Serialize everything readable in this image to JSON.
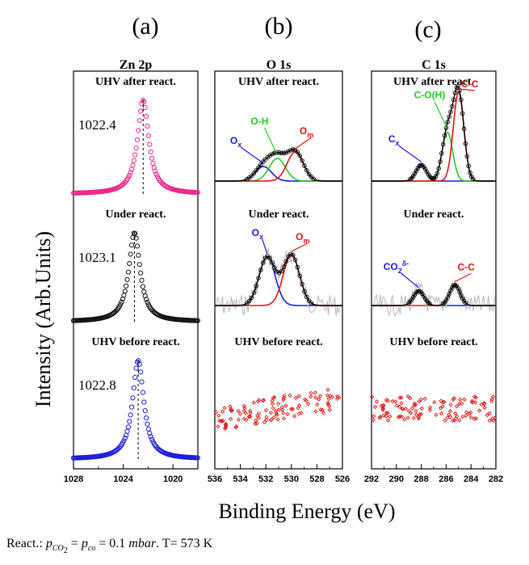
{
  "figure": {
    "ylabel": "Intensity (Arb.Units)",
    "xlabel": "Binding Energy (eV)",
    "footer": {
      "prefix": "React.: ",
      "p_symbol": "p",
      "co2_sub": "CO",
      "co2_sub_num": "2",
      "eq1": " = ",
      "co_sub": "co",
      "eq2": " = 0.1 ",
      "unit": "mbar",
      "temp": ". T= 573  K"
    }
  },
  "chart_data": [
    {
      "type": "scatter",
      "panel_letter": "(a)",
      "title": "Zn 2p",
      "xlim": [
        1028,
        1018
      ],
      "xticks": [
        1028,
        1024,
        1020
      ],
      "rows": [
        {
          "label": "UHV after react.",
          "peak_value": "1022.4",
          "peak_center": 1022.4,
          "color": "#e8288c"
        },
        {
          "label": "Under react.",
          "peak_value": "1023.1",
          "peak_center": 1023.1,
          "color": "#111111"
        },
        {
          "label": "UHV before react.",
          "peak_value": "1022.8",
          "peak_center": 1022.8,
          "color": "#1a1adb"
        }
      ]
    },
    {
      "type": "scatter",
      "panel_letter": "(b)",
      "title": "O 1s",
      "xlim": [
        536,
        526
      ],
      "xticks": [
        536,
        534,
        532,
        530,
        528,
        526
      ],
      "rows": [
        {
          "label": "UHV after react.",
          "components": [
            {
              "name": "Ox",
              "base": "O",
              "sub": "x",
              "center": 532.2,
              "amp": 0.45,
              "color": "#1a1adb"
            },
            {
              "name": "O-H",
              "base": "O-H",
              "sub": "",
              "center": 531.1,
              "amp": 0.7,
              "color": "#22cc22"
            },
            {
              "name": "Om",
              "base": "O",
              "sub": "m",
              "center": 529.7,
              "amp": 0.9,
              "color": "#e81010"
            }
          ]
        },
        {
          "label": "Under react.",
          "components": [
            {
              "name": "Ox",
              "base": "O",
              "sub": "x",
              "center": 531.9,
              "amp": 1.0,
              "color": "#1a1adb"
            },
            {
              "name": "Om",
              "base": "O",
              "sub": "m",
              "center": 530.0,
              "amp": 1.05,
              "color": "#e81010"
            }
          ]
        },
        {
          "label": "UHV before react.",
          "components": []
        }
      ]
    },
    {
      "type": "scatter",
      "panel_letter": "(c)",
      "title": "C 1s",
      "xlim": [
        292,
        282
      ],
      "xticks": [
        292,
        290,
        288,
        286,
        284,
        282
      ],
      "rows": [
        {
          "label": "UHV after react.",
          "components": [
            {
              "name": "Cx",
              "base": "C",
              "sub": "x",
              "center": 288.0,
              "amp": 0.18,
              "color": "#1a1adb"
            },
            {
              "name": "C-O(H)",
              "base": "C-O(H)",
              "sub": "",
              "center": 285.9,
              "amp": 0.55,
              "color": "#22cc22"
            },
            {
              "name": "C-C",
              "base": "C-C",
              "sub": "",
              "center": 285.0,
              "amp": 1.0,
              "color": "#e81010"
            }
          ]
        },
        {
          "label": "Under react.",
          "components": [
            {
              "name": "CO2δ-",
              "base": "CO",
              "sub": "2",
              "sup": "δ-",
              "center": 288.2,
              "amp": 0.6,
              "color": "#1a1adb"
            },
            {
              "name": "C-C",
              "base": "C-C",
              "sub": "",
              "center": 285.3,
              "amp": 0.85,
              "color": "#e81010"
            }
          ]
        },
        {
          "label": "UHV before react.",
          "components": []
        }
      ]
    }
  ]
}
